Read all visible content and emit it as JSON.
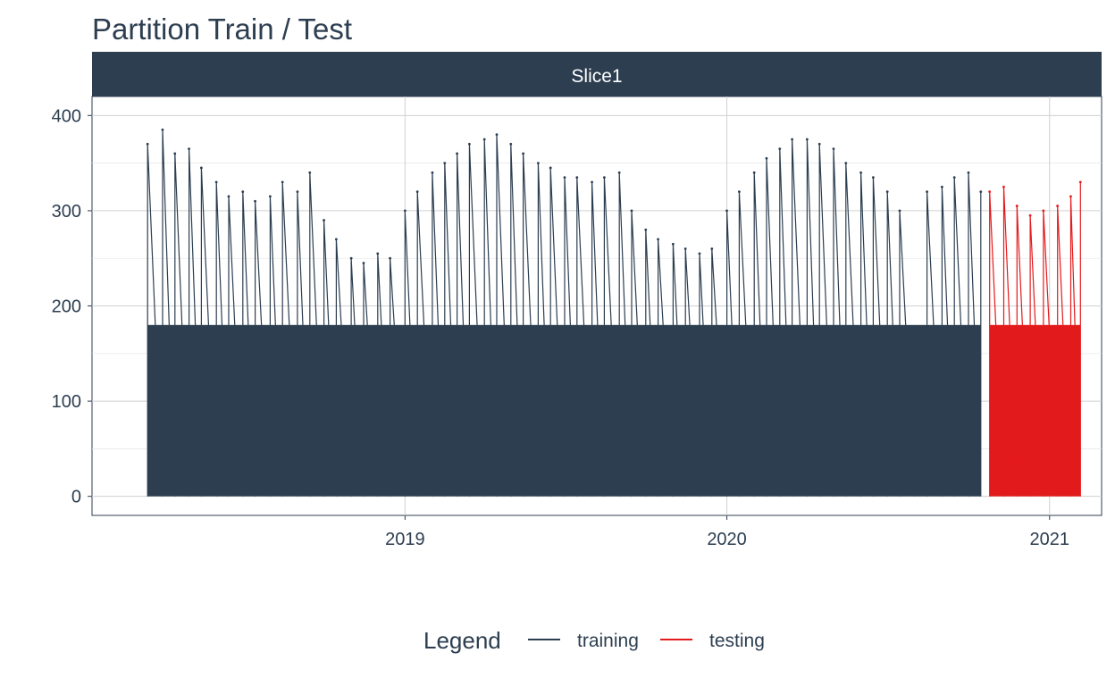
{
  "chart_data": {
    "type": "line",
    "title": "Partition Train / Test",
    "facet_label": "Slice1",
    "x_type": "date",
    "xlim": [
      "2018-01-11",
      "2021-03-01"
    ],
    "ylim": [
      -20,
      420
    ],
    "x_ticks": [
      {
        "value": "2019-01-01",
        "label": "2019"
      },
      {
        "value": "2020-01-01",
        "label": "2020"
      },
      {
        "value": "2021-01-01",
        "label": "2021"
      }
    ],
    "y_ticks": [
      {
        "value": 0,
        "label": "0"
      },
      {
        "value": 100,
        "label": "100"
      },
      {
        "value": 200,
        "label": "200"
      },
      {
        "value": 300,
        "label": "300"
      },
      {
        "value": 400,
        "label": "400"
      }
    ],
    "grid": true,
    "legend": {
      "title": "Legend",
      "position": "bottom",
      "items": [
        {
          "label": "training",
          "color": "#2c3e50"
        },
        {
          "label": "testing",
          "color": "#e31a1c"
        }
      ]
    },
    "series": [
      {
        "name": "training",
        "color": "#2c3e50",
        "note_values": "daily peak envelope sampled every 15 days; daily series drops to 0 overnight",
        "points": [
          [
            "2018-03-15",
            370
          ],
          [
            "2018-04-01",
            385
          ],
          [
            "2018-04-15",
            360
          ],
          [
            "2018-05-01",
            365
          ],
          [
            "2018-05-15",
            345
          ],
          [
            "2018-06-01",
            330
          ],
          [
            "2018-06-15",
            315
          ],
          [
            "2018-07-01",
            320
          ],
          [
            "2018-07-15",
            310
          ],
          [
            "2018-08-01",
            315
          ],
          [
            "2018-08-15",
            330
          ],
          [
            "2018-09-01",
            320
          ],
          [
            "2018-09-15",
            340
          ],
          [
            "2018-10-01",
            290
          ],
          [
            "2018-10-15",
            270
          ],
          [
            "2018-11-01",
            250
          ],
          [
            "2018-11-15",
            245
          ],
          [
            "2018-12-01",
            255
          ],
          [
            "2018-12-15",
            250
          ],
          [
            "2019-01-01",
            300
          ],
          [
            "2019-01-15",
            320
          ],
          [
            "2019-02-01",
            340
          ],
          [
            "2019-02-15",
            350
          ],
          [
            "2019-03-01",
            360
          ],
          [
            "2019-03-15",
            370
          ],
          [
            "2019-04-01",
            375
          ],
          [
            "2019-04-15",
            380
          ],
          [
            "2019-05-01",
            370
          ],
          [
            "2019-05-15",
            360
          ],
          [
            "2019-06-01",
            350
          ],
          [
            "2019-06-15",
            345
          ],
          [
            "2019-07-01",
            335
          ],
          [
            "2019-07-15",
            335
          ],
          [
            "2019-08-01",
            330
          ],
          [
            "2019-08-15",
            335
          ],
          [
            "2019-09-01",
            340
          ],
          [
            "2019-09-15",
            300
          ],
          [
            "2019-10-01",
            280
          ],
          [
            "2019-10-15",
            270
          ],
          [
            "2019-11-01",
            265
          ],
          [
            "2019-11-15",
            260
          ],
          [
            "2019-12-01",
            255
          ],
          [
            "2019-12-15",
            260
          ],
          [
            "2020-01-01",
            300
          ],
          [
            "2020-01-15",
            320
          ],
          [
            "2020-02-01",
            340
          ],
          [
            "2020-02-15",
            355
          ],
          [
            "2020-03-01",
            365
          ],
          [
            "2020-03-15",
            375
          ],
          [
            "2020-04-01",
            375
          ],
          [
            "2020-04-15",
            370
          ],
          [
            "2020-05-01",
            365
          ],
          [
            "2020-05-15",
            350
          ],
          [
            "2020-06-01",
            340
          ],
          [
            "2020-06-15",
            335
          ],
          [
            "2020-07-01",
            320
          ],
          [
            "2020-07-15",
            300
          ],
          [
            "2020-08-01",
            150
          ],
          [
            "2020-08-15",
            320
          ],
          [
            "2020-09-01",
            325
          ],
          [
            "2020-09-15",
            335
          ],
          [
            "2020-10-01",
            340
          ],
          [
            "2020-10-15",
            320
          ]
        ]
      },
      {
        "name": "testing",
        "color": "#e31a1c",
        "points": [
          [
            "2020-10-25",
            320
          ],
          [
            "2020-11-10",
            325
          ],
          [
            "2020-11-25",
            305
          ],
          [
            "2020-12-10",
            295
          ],
          [
            "2020-12-25",
            300
          ],
          [
            "2021-01-10",
            305
          ],
          [
            "2021-01-25",
            315
          ],
          [
            "2021-02-05",
            330
          ]
        ]
      }
    ]
  }
}
